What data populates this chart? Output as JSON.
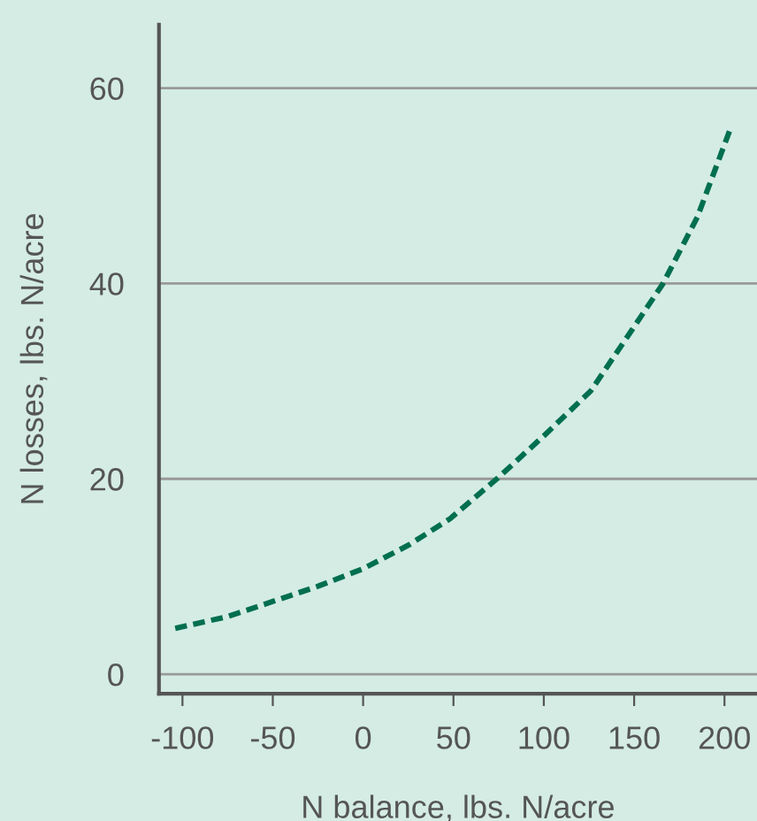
{
  "chart_data": {
    "type": "line",
    "xlabel": "N balance, lbs. N/acre",
    "ylabel": "N losses, lbs. N/acre",
    "x": [
      -104,
      -75,
      -54,
      -25,
      0,
      25,
      48,
      74,
      100,
      126,
      149,
      166,
      185,
      204
    ],
    "series": [
      {
        "color": "#006f4f",
        "values": [
          4.7,
          5.9,
          7.2,
          9.0,
          10.8,
          13.2,
          15.9,
          20.0,
          24.4,
          29.0,
          35.3,
          40.0,
          46.8,
          56.2
        ]
      }
    ],
    "xlim": [
      -113,
      218
    ],
    "ylim": [
      -2,
      66.5
    ],
    "xticks": [
      -100,
      -50,
      0,
      50,
      100,
      150,
      200
    ],
    "yticks": [
      0,
      20,
      40,
      60
    ],
    "grid": "y",
    "line_style": "dashed"
  }
}
